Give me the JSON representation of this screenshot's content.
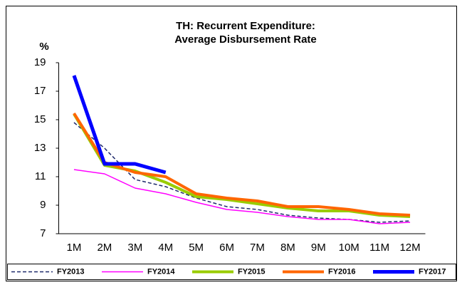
{
  "chart_data": {
    "type": "line",
    "title": [
      "TH: Recurrent Expenditure:",
      "Average Disbursement Rate"
    ],
    "y_label": "%",
    "categories": [
      "1M",
      "2M",
      "3M",
      "4M",
      "5M",
      "6M",
      "7M",
      "8M",
      "9M",
      "10M",
      "11M",
      "12M"
    ],
    "ylim": [
      7,
      19
    ],
    "yticks": [
      7,
      9,
      11,
      13,
      15,
      17,
      19
    ],
    "legend": "bottom",
    "series": [
      {
        "name": "FY2013",
        "color": "#1f2a6b",
        "width": 1.5,
        "dash": true,
        "values": [
          14.8,
          13.0,
          10.8,
          10.3,
          9.5,
          8.9,
          8.7,
          8.3,
          8.1,
          8.0,
          7.8,
          7.9
        ]
      },
      {
        "name": "FY2014",
        "color": "#ff00ff",
        "width": 1.5,
        "values": [
          11.5,
          11.2,
          10.2,
          9.8,
          9.2,
          8.7,
          8.5,
          8.2,
          8.0,
          8.0,
          7.7,
          7.8
        ]
      },
      {
        "name": "FY2015",
        "color": "#99cc00",
        "width": 4,
        "values": [
          15.4,
          11.8,
          11.4,
          10.6,
          9.6,
          9.4,
          9.1,
          8.8,
          8.6,
          8.6,
          8.3,
          8.2
        ]
      },
      {
        "name": "FY2016",
        "color": "#ff6600",
        "width": 4,
        "values": [
          15.45,
          12.0,
          11.3,
          11.0,
          9.8,
          9.5,
          9.3,
          8.9,
          8.9,
          8.7,
          8.4,
          8.3
        ]
      },
      {
        "name": "FY2017",
        "color": "#0000ff",
        "width": 5,
        "values": [
          18.1,
          11.9,
          11.9,
          11.3,
          null,
          null,
          null,
          null,
          null,
          null,
          null,
          null
        ]
      }
    ]
  }
}
